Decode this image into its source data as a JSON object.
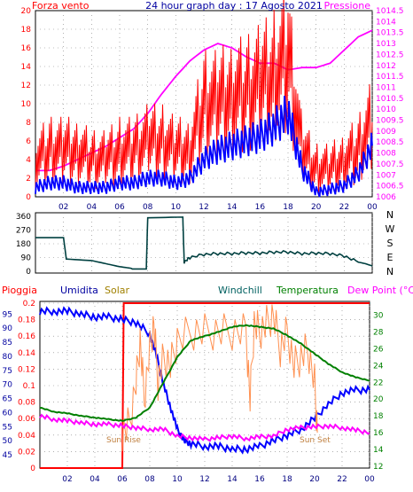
{
  "chart_data": [
    {
      "type": "line",
      "title": "24 hour graph day : 17 Agosto 2021",
      "left_label": "Forza vento",
      "right_label": "Pressione",
      "x_ticks": [
        "02",
        "04",
        "06",
        "08",
        "10",
        "12",
        "14",
        "16",
        "18",
        "20",
        "22",
        "00"
      ],
      "y_left_ticks": [
        "0",
        "2",
        "4",
        "6",
        "8",
        "10",
        "12",
        "14",
        "16",
        "18",
        "20"
      ],
      "y_left_range": [
        0,
        20
      ],
      "y_right_ticks": [
        "1006",
        "1006.5",
        "1007",
        "1007.5",
        "1008",
        "1008.5",
        "1009",
        "1009.5",
        "1010",
        "1010.5",
        "1011",
        "1011.5",
        "1012",
        "1012.5",
        "1013",
        "1013.5",
        "1014",
        "1014.5"
      ],
      "y_right_range": [
        1006,
        1014.5
      ],
      "x_range_hours": [
        0,
        24
      ],
      "grid": true,
      "series": [
        {
          "color": "#ff00ff",
          "axis": "right",
          "x": [
            0,
            1,
            2,
            3,
            4,
            5,
            6,
            7,
            8,
            9,
            10,
            11,
            12,
            13,
            14,
            15,
            16,
            17,
            18,
            19,
            20,
            21,
            22,
            23,
            24
          ],
          "values": [
            1007.2,
            1007.2,
            1007.4,
            1007.7,
            1008.0,
            1008.3,
            1008.7,
            1009.1,
            1009.8,
            1010.7,
            1011.5,
            1012.2,
            1012.7,
            1013.0,
            1012.8,
            1012.4,
            1012.1,
            1012.1,
            1011.8,
            1011.9,
            1011.9,
            1012.1,
            1012.7,
            1013.3,
            1013.6
          ]
        },
        {
          "color": "#ff0000",
          "axis": "left",
          "style": "gust",
          "x": [
            0,
            1,
            2,
            3,
            4,
            5,
            6,
            7,
            8,
            9,
            10,
            11,
            12,
            13,
            14,
            15,
            16,
            17,
            18,
            19,
            20,
            21,
            22,
            23,
            24
          ],
          "values": [
            4,
            5,
            5,
            5,
            4,
            4,
            5,
            5,
            6,
            6,
            5,
            5,
            10,
            10,
            11,
            11,
            12,
            13,
            15,
            5,
            3,
            3,
            4,
            5,
            8
          ]
        },
        {
          "color": "#0000ff",
          "axis": "left",
          "x": [
            0,
            1,
            2,
            3,
            4,
            5,
            6,
            7,
            8,
            9,
            10,
            11,
            12,
            13,
            14,
            15,
            16,
            17,
            18,
            19,
            20,
            21,
            22,
            23,
            24
          ],
          "values": [
            1,
            1.5,
            1.5,
            1,
            1,
            1,
            1.5,
            1.5,
            2,
            2,
            1.5,
            2,
            4,
            5,
            5.5,
            6,
            6.5,
            7.5,
            9,
            3,
            0.5,
            0.8,
            1.2,
            2.5,
            5.5
          ]
        }
      ]
    },
    {
      "type": "line",
      "y_right_labels": [
        "N",
        "W",
        "S",
        "E",
        "N"
      ],
      "y_left_ticks": [
        "0",
        "90",
        "180",
        "270",
        "360"
      ],
      "y_range": [
        0,
        360
      ],
      "grid": true,
      "series": [
        {
          "color": "#004040",
          "x": [
            0,
            1,
            2,
            2.2,
            4,
            5,
            6,
            6.8,
            6.9,
            7.9,
            8,
            10.5,
            10.6,
            11,
            12,
            13,
            14,
            15,
            16,
            17,
            18,
            19,
            20,
            21,
            22,
            23,
            23.5,
            24
          ],
          "values": [
            220,
            220,
            220,
            80,
            70,
            50,
            30,
            20,
            15,
            15,
            350,
            355,
            60,
            90,
            110,
            115,
            115,
            120,
            118,
            125,
            125,
            115,
            118,
            115,
            100,
            60,
            50,
            35
          ]
        }
      ]
    },
    {
      "type": "line",
      "legend": [
        "Pioggia",
        "Umidita",
        "Solar",
        "Windchill",
        "Temperatura",
        "Dew Point (°C)"
      ],
      "y_rain_ticks": [
        "0",
        "0.02",
        "0.04",
        "0.06",
        "0.08",
        "0.1",
        "0.12",
        "0.14",
        "0.16",
        "0.18",
        "0.2"
      ],
      "y_rain_range": [
        0,
        0.2
      ],
      "y_humidity_ticks": [
        "45",
        "50",
        "55",
        "60",
        "65",
        "70",
        "75",
        "80",
        "85",
        "90",
        "95"
      ],
      "y_humidity_range": [
        45,
        97
      ],
      "y_temp_ticks": [
        "12",
        "14",
        "16",
        "18",
        "20",
        "22",
        "24",
        "26",
        "28",
        "30"
      ],
      "y_temp_range": [
        12,
        31
      ],
      "annotations": [
        "Sun Rise",
        "Sun Set"
      ],
      "grid": true,
      "series": [
        {
          "name": "Pioggia",
          "color": "#ff0000",
          "x": [
            0,
            6,
            6.1,
            24
          ],
          "values": [
            0,
            0,
            0.2,
            0.2
          ]
        },
        {
          "name": "Umidita",
          "color": "#0000ff",
          "x": [
            0,
            1,
            2,
            3,
            4,
            5,
            6,
            7,
            8,
            8.5,
            9,
            9.5,
            10,
            10.5,
            11,
            12,
            13,
            14,
            15,
            16,
            17,
            18,
            19,
            20,
            21,
            22,
            23,
            24
          ],
          "values": [
            96,
            96,
            96,
            95,
            94,
            94,
            93,
            92,
            88,
            80,
            70,
            62,
            54,
            50,
            49,
            48,
            48,
            47,
            47,
            48,
            50,
            52,
            54,
            58,
            63,
            67,
            68,
            68
          ]
        },
        {
          "name": "Solar",
          "color": "#ff9050",
          "x": [
            6,
            6.5,
            7,
            7.3,
            7.6,
            8,
            8.3,
            8.6,
            9,
            9.5,
            10,
            11,
            12,
            13,
            14,
            15,
            15.3,
            15.6,
            16,
            16.5,
            17,
            17.5,
            18,
            18.5,
            19,
            19.5,
            20,
            20.2
          ],
          "values": [
            16,
            17,
            22,
            27,
            20,
            26,
            29,
            22,
            25,
            24,
            27,
            28,
            28,
            28,
            28,
            28,
            20,
            29,
            28,
            29,
            30,
            26,
            28,
            24,
            25,
            26,
            22,
            16
          ]
        },
        {
          "name": "Temperatura",
          "color": "#008000",
          "x": [
            0,
            1,
            2,
            3,
            4,
            5,
            6,
            7,
            8,
            9,
            10,
            11,
            12,
            13,
            14,
            15,
            16,
            17,
            18,
            19,
            20,
            21,
            22,
            23,
            24
          ],
          "values": [
            19,
            18.5,
            18.3,
            18,
            17.8,
            17.6,
            17.4,
            17.8,
            19,
            22,
            25,
            27,
            27.5,
            28,
            28.6,
            28.8,
            28.6,
            28.4,
            27.6,
            26.6,
            25.4,
            24.2,
            23.2,
            22.6,
            22.2
          ]
        },
        {
          "name": "Dew Point (°C)",
          "color": "#ff00ff",
          "x": [
            0,
            1,
            2,
            3,
            4,
            5,
            6,
            7,
            8,
            9,
            10,
            11,
            12,
            13,
            14,
            15,
            16,
            17,
            18,
            19,
            20,
            21,
            22,
            23,
            24
          ],
          "values": [
            18,
            17.6,
            17.4,
            17.2,
            17,
            17,
            16.8,
            16.6,
            16.4,
            16.4,
            15.6,
            15.4,
            15.2,
            15.4,
            15.6,
            15.3,
            15.5,
            15.6,
            16.4,
            16.6,
            16.7,
            16.8,
            16.6,
            16.3,
            16
          ]
        }
      ]
    }
  ]
}
